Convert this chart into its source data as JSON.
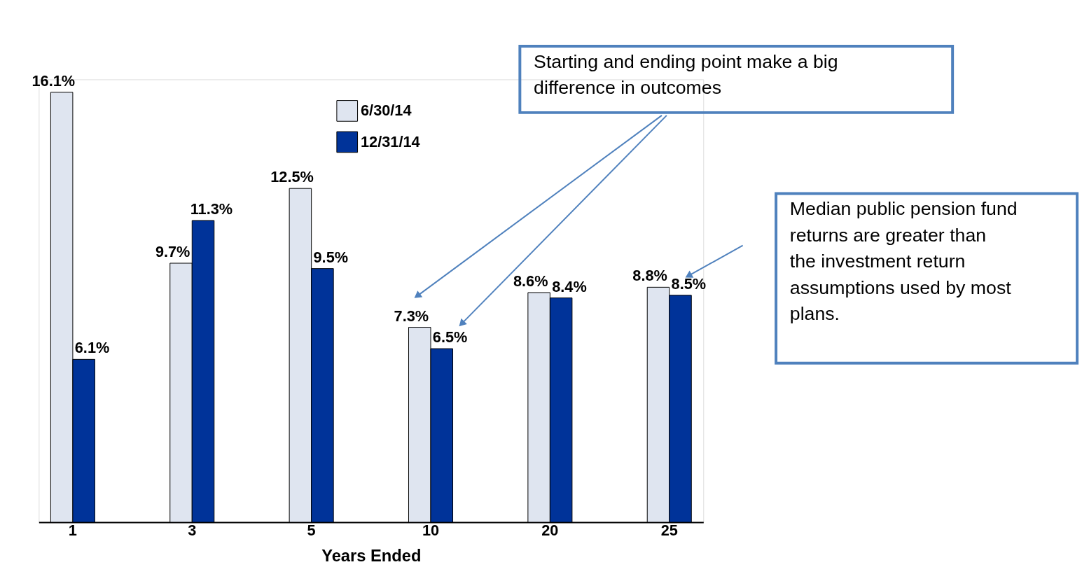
{
  "chart_data": {
    "type": "bar",
    "xlabel": "Years Ended",
    "categories": [
      "1",
      "3",
      "5",
      "10",
      "20",
      "25"
    ],
    "series": [
      {
        "name": "6/30/14",
        "color": "#dfe5f0",
        "values": [
          16.1,
          9.7,
          12.5,
          7.3,
          8.6,
          8.8
        ],
        "value_labels": [
          "16.1%",
          "9.7%",
          "12.5%",
          "7.3%",
          "8.6%",
          "8.8%"
        ]
      },
      {
        "name": "12/31/14",
        "color": "#003399",
        "values": [
          6.1,
          11.3,
          9.5,
          6.5,
          8.4,
          8.5
        ],
        "value_labels": [
          "6.1%",
          "11.3%",
          "9.5%",
          "6.5%",
          "8.4%",
          "8.5%"
        ]
      }
    ],
    "legend": "top",
    "tick_labels": "x",
    "grid": false,
    "annotations": [
      "Starting and ending point make a big difference in outcomes",
      "Median public pension fund returns are greater than the investment return assumptions used by most plans."
    ]
  }
}
